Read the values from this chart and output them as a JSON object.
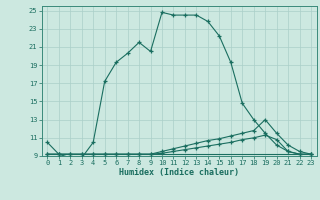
{
  "xlabel": "Humidex (Indice chaleur)",
  "bg_color": "#cce8e0",
  "grid_color": "#aacfc8",
  "line_color": "#1a6e60",
  "spine_color": "#3a8a7a",
  "xlim": [
    -0.5,
    23.5
  ],
  "ylim": [
    9,
    25.5
  ],
  "xticks": [
    0,
    1,
    2,
    3,
    4,
    5,
    6,
    7,
    8,
    9,
    10,
    11,
    12,
    13,
    14,
    15,
    16,
    17,
    18,
    19,
    20,
    21,
    22,
    23
  ],
  "yticks": [
    9,
    11,
    13,
    15,
    17,
    19,
    21,
    23,
    25
  ],
  "line1_x": [
    0,
    1,
    2,
    3,
    4,
    5,
    6,
    7,
    8,
    9,
    10,
    11,
    12,
    13,
    14,
    15,
    16,
    17,
    18,
    19,
    20,
    21,
    22,
    23
  ],
  "line1_y": [
    10.5,
    9.2,
    8.8,
    8.8,
    10.5,
    17.2,
    19.3,
    20.3,
    21.5,
    20.5,
    24.8,
    24.5,
    24.5,
    24.5,
    23.8,
    22.2,
    19.3,
    14.8,
    13.0,
    11.5,
    10.2,
    9.5,
    9.2,
    9.2
  ],
  "line2_x": [
    0,
    1,
    2,
    3,
    4,
    5,
    6,
    7,
    8,
    9,
    10,
    11,
    12,
    13,
    14,
    15,
    16,
    17,
    18,
    19,
    20,
    21,
    22,
    23
  ],
  "line2_y": [
    9.2,
    9.2,
    9.2,
    9.2,
    9.2,
    9.2,
    9.2,
    9.2,
    9.2,
    9.2,
    9.5,
    9.8,
    10.1,
    10.4,
    10.7,
    10.9,
    11.2,
    11.5,
    11.8,
    13.0,
    11.5,
    10.2,
    9.5,
    9.2
  ],
  "line3_x": [
    0,
    1,
    2,
    3,
    4,
    5,
    6,
    7,
    8,
    9,
    10,
    11,
    12,
    13,
    14,
    15,
    16,
    17,
    18,
    19,
    20,
    21,
    22,
    23
  ],
  "line3_y": [
    9.2,
    9.2,
    9.2,
    9.2,
    9.2,
    9.2,
    9.2,
    9.2,
    9.2,
    9.2,
    9.3,
    9.5,
    9.7,
    9.9,
    10.1,
    10.3,
    10.5,
    10.8,
    11.0,
    11.3,
    10.8,
    9.5,
    9.2,
    9.2
  ],
  "line4_x": [
    0,
    1,
    2,
    3,
    4,
    5,
    6,
    7,
    8,
    9,
    10,
    11,
    12,
    13,
    14,
    15,
    16,
    17,
    18,
    19,
    20,
    21,
    22,
    23
  ],
  "line4_y": [
    9.2,
    9.2,
    9.2,
    9.2,
    9.2,
    9.2,
    9.2,
    9.2,
    9.2,
    9.2,
    9.2,
    9.2,
    9.2,
    9.2,
    9.2,
    9.2,
    9.2,
    9.2,
    9.2,
    9.2,
    9.2,
    9.2,
    9.2,
    9.2
  ]
}
